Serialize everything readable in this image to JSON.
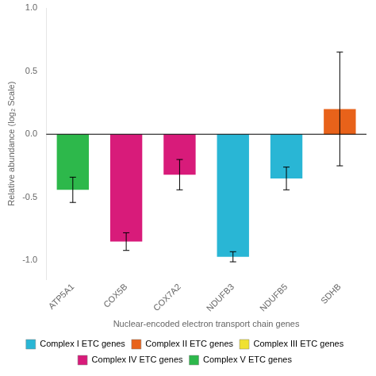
{
  "chart_data": {
    "type": "bar",
    "categories": [
      "ATP5A1",
      "COX5B",
      "COX7A2",
      "NDUFB3",
      "NDUFB5",
      "SDHB"
    ],
    "values": [
      -0.44,
      -0.85,
      -0.32,
      -0.97,
      -0.35,
      0.2
    ],
    "errors": [
      0.1,
      0.07,
      0.12,
      0.04,
      0.09,
      0.45
    ],
    "colors": [
      "#2db84b",
      "#d81b7a",
      "#d81b7a",
      "#29b6d5",
      "#29b6d5",
      "#e8621a"
    ],
    "ylabel": "Relative abundance (log₂ Scale)",
    "xlabel": "Nuclear-encoded electron transport chain genes",
    "ylim": [
      -1.15,
      1.0
    ],
    "yticks": [
      {
        "value": -1.0,
        "label": "-1.0"
      },
      {
        "value": -0.5,
        "label": "-0.5"
      },
      {
        "value": 0.0,
        "label": "0.0"
      },
      {
        "value": 0.5,
        "label": "0.5"
      },
      {
        "value": 1.0,
        "label": "1.0"
      }
    ],
    "grid": false,
    "legend": "bottom",
    "legend_entries": [
      {
        "name": "Complex I ETC genes",
        "color": "#29b6d5"
      },
      {
        "name": "Complex II ETC genes",
        "color": "#e8621a"
      },
      {
        "name": "Complex III ETC genes",
        "color": "#f0e130"
      },
      {
        "name": "Complex IV ETC genes",
        "color": "#d81b7a"
      },
      {
        "name": "Complex V ETC genes",
        "color": "#2db84b"
      }
    ]
  }
}
